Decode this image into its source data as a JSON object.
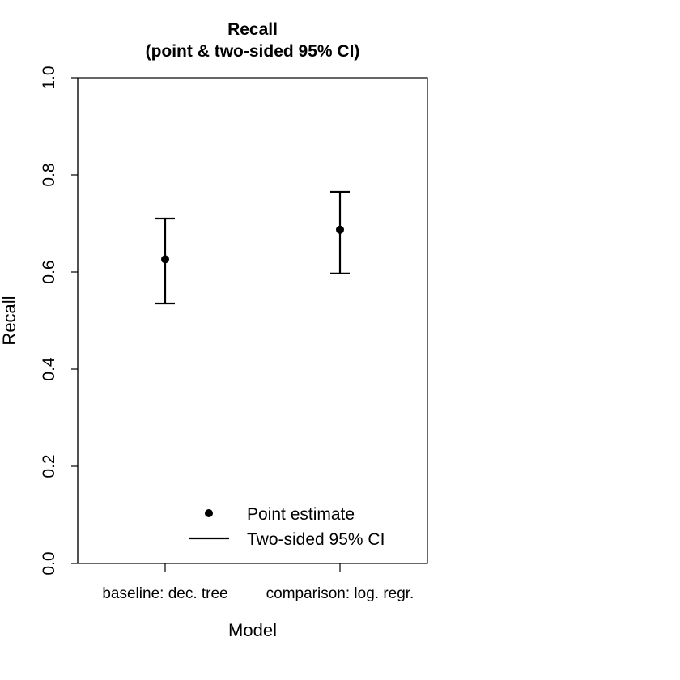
{
  "chart_data": {
    "type": "scatter",
    "title": "Recall",
    "subtitle": "(point & two-sided 95% CI)",
    "xlabel": "Model",
    "ylabel": "Recall",
    "ylim": [
      0,
      1
    ],
    "yticks": [
      "0.0",
      "0.2",
      "0.4",
      "0.6",
      "0.8",
      "1.0"
    ],
    "categories": [
      "baseline: dec. tree",
      "comparison: log. regr."
    ],
    "points": [
      {
        "category": "baseline: dec. tree",
        "estimate": 0.626,
        "ci_lower": 0.535,
        "ci_upper": 0.71
      },
      {
        "category": "comparison: log. regr.",
        "estimate": 0.687,
        "ci_lower": 0.597,
        "ci_upper": 0.765
      }
    ],
    "grid": false,
    "legend": {
      "placement": "bottom-right",
      "entries": [
        "Point estimate",
        "Two-sided 95% CI"
      ]
    }
  }
}
